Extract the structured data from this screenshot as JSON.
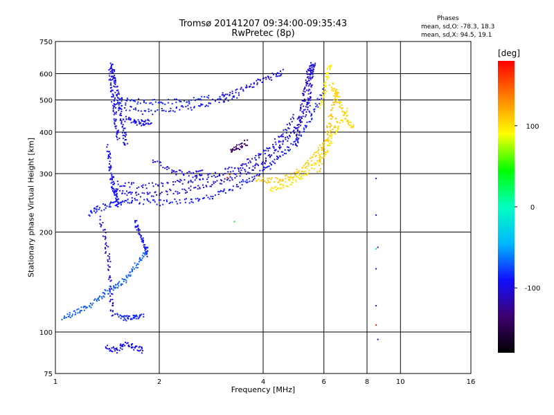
{
  "chart_data": {
    "type": "scatter",
    "title": "Tromsø 20141207 09:34:00-09:35:43",
    "subtitle": "RwPretec (8p)",
    "xlabel": "Frequency [MHz]",
    "ylabel": "Stationary phase Virtual Height [km]",
    "x_scale": "log",
    "y_scale": "log",
    "xlim": [
      1,
      16
    ],
    "ylim": [
      75,
      750
    ],
    "x_ticks": [
      1,
      2,
      4,
      6,
      8,
      10,
      16
    ],
    "y_ticks": [
      75,
      100,
      200,
      300,
      400,
      500,
      600,
      750
    ],
    "x_grid": [
      2,
      4,
      6,
      8,
      10
    ],
    "y_grid": [
      100,
      200,
      300,
      400,
      500,
      600
    ],
    "phase_stats": {
      "header": "Phases",
      "o_line": "mean, sd,O: -78.3, 18.3",
      "x_line": "mean, sd,X:  94.5, 19.1"
    },
    "colorbar": {
      "label": "[deg]",
      "ticks": [
        100,
        0,
        -100
      ],
      "range": [
        -180,
        180
      ],
      "colors": [
        "#000000",
        "#400070",
        "#1010ff",
        "#00b8ff",
        "#00ffc0",
        "#00ff00",
        "#ffff00",
        "#ff8000",
        "#ff0000"
      ]
    },
    "series": [
      {
        "type": "curve",
        "phase": -95,
        "x": [
          1.45,
          1.47,
          1.5,
          1.52,
          1.55,
          1.58,
          1.6
        ],
        "y": [
          640,
          600,
          550,
          500,
          450,
          400,
          360
        ]
      },
      {
        "type": "curve",
        "phase": -95,
        "x": [
          1.44,
          1.46,
          1.48,
          1.5,
          1.52
        ],
        "y": [
          620,
          540,
          480,
          420,
          380
        ]
      },
      {
        "type": "curve",
        "phase": -90,
        "x": [
          1.42,
          1.44,
          1.46,
          1.48,
          1.5,
          1.53
        ],
        "y": [
          360,
          320,
          290,
          270,
          255,
          240
        ]
      },
      {
        "type": "curve",
        "phase": -85,
        "x": [
          1.5,
          1.7,
          2.0,
          2.4,
          2.8
        ],
        "y": [
          500,
          495,
          492,
          495,
          510
        ]
      },
      {
        "type": "curve",
        "phase": -90,
        "x": [
          1.5,
          1.8,
          2.2,
          2.6,
          3.0,
          3.4
        ],
        "y": [
          480,
          460,
          465,
          480,
          500,
          515
        ]
      },
      {
        "type": "curve",
        "phase": -98,
        "x": [
          3.0,
          3.4,
          3.8,
          4.2,
          4.6
        ],
        "y": [
          515,
          535,
          560,
          585,
          610
        ]
      },
      {
        "type": "curve",
        "phase": -88,
        "x": [
          1.25,
          1.35,
          1.5,
          1.7,
          2.0,
          2.4,
          2.8,
          3.2,
          3.6,
          4.0,
          4.4,
          4.8,
          5.2,
          5.6,
          6.0
        ],
        "y": [
          228,
          236,
          245,
          248,
          245,
          248,
          255,
          268,
          285,
          305,
          330,
          360,
          400,
          460,
          540
        ]
      },
      {
        "type": "curve",
        "phase": -100,
        "x": [
          1.5,
          1.7,
          2.0,
          2.4,
          2.8,
          3.2,
          3.6,
          4.0,
          4.4,
          4.8,
          5.2,
          5.5
        ],
        "y": [
          265,
          258,
          262,
          268,
          278,
          290,
          305,
          325,
          355,
          390,
          440,
          520
        ]
      },
      {
        "type": "curve",
        "phase": -95,
        "x": [
          1.5,
          1.8,
          2.2,
          2.6,
          3.0,
          3.4,
          3.8,
          4.2,
          4.6,
          5.0
        ],
        "y": [
          280,
          275,
          280,
          290,
          300,
          315,
          335,
          360,
          395,
          450
        ]
      },
      {
        "type": "curve",
        "phase": -105,
        "x": [
          5.0,
          5.1,
          5.2,
          5.3,
          5.4,
          5.5
        ],
        "y": [
          360,
          420,
          480,
          540,
          600,
          640
        ]
      },
      {
        "type": "curve",
        "phase": -100,
        "x": [
          5.4,
          5.45,
          5.5,
          5.55,
          5.6
        ],
        "y": [
          460,
          520,
          580,
          620,
          640
        ]
      },
      {
        "type": "curve",
        "phase": -95,
        "x": [
          1.6,
          1.7,
          1.8,
          1.9
        ],
        "y": [
          440,
          430,
          425,
          430
        ]
      },
      {
        "type": "curve",
        "phase": -98,
        "x": [
          1.9,
          2.2,
          2.5,
          2.7
        ],
        "y": [
          330,
          305,
          298,
          302
        ]
      },
      {
        "type": "curve",
        "phase": 108,
        "x": [
          3.8,
          4.2,
          4.6,
          5.0,
          5.4,
          5.8,
          6.2,
          6.6
        ],
        "y": [
          290,
          285,
          290,
          300,
          320,
          350,
          390,
          440
        ]
      },
      {
        "type": "curve",
        "phase": 100,
        "x": [
          4.2,
          4.6,
          5.0,
          5.4,
          5.8,
          6.2,
          6.6,
          7.0
        ],
        "y": [
          265,
          275,
          290,
          305,
          330,
          365,
          410,
          470
        ]
      },
      {
        "type": "curve",
        "phase": 112,
        "x": [
          5.8,
          6.0,
          6.2,
          6.4,
          6.6
        ],
        "y": [
          300,
          360,
          420,
          480,
          540
        ]
      },
      {
        "type": "curve",
        "phase": 95,
        "x": [
          5.9,
          6.05,
          6.15,
          6.25
        ],
        "y": [
          480,
          540,
          600,
          640
        ]
      },
      {
        "type": "curve",
        "phase": 105,
        "x": [
          6.3,
          6.5,
          6.7,
          7.0,
          7.3
        ],
        "y": [
          560,
          520,
          480,
          440,
          410
        ]
      },
      {
        "type": "curve",
        "phase": -140,
        "x": [
          3.2,
          3.4,
          3.6
        ],
        "y": [
          355,
          360,
          375
        ]
      },
      {
        "type": "curve",
        "phase": -70,
        "x": [
          1.05,
          1.15,
          1.25,
          1.35,
          1.45,
          1.55,
          1.65,
          1.75,
          1.85
        ],
        "y": [
          110,
          115,
          120,
          128,
          135,
          140,
          150,
          165,
          178
        ]
      },
      {
        "type": "curve",
        "phase": -100,
        "x": [
          1.35,
          1.4,
          1.43,
          1.45,
          1.47
        ],
        "y": [
          220,
          190,
          160,
          130,
          110
        ]
      },
      {
        "type": "curve",
        "phase": -95,
        "x": [
          1.4,
          1.5,
          1.6,
          1.7,
          1.8
        ],
        "y": [
          90,
          88,
          92,
          90,
          88
        ]
      },
      {
        "type": "curve",
        "phase": -90,
        "x": [
          1.7,
          1.75,
          1.8,
          1.85
        ],
        "y": [
          215,
          200,
          185,
          170
        ]
      },
      {
        "type": "curve",
        "phase": -85,
        "x": [
          1.5,
          1.6,
          1.7,
          1.8
        ],
        "y": [
          112,
          110,
          111,
          112
        ]
      },
      {
        "type": "points",
        "phase": -100,
        "x": [
          8.5,
          8.5,
          8.5,
          8.5,
          8.6,
          8.6
        ],
        "y": [
          290,
          225,
          155,
          120,
          95,
          180
        ]
      },
      {
        "type": "points",
        "phase": 170,
        "x": [
          3.15,
          3.2,
          8.5
        ],
        "y": [
          292,
          298,
          105
        ]
      },
      {
        "type": "points",
        "phase": 30,
        "x": [
          3.3,
          8.5
        ],
        "y": [
          215,
          178
        ]
      }
    ]
  }
}
